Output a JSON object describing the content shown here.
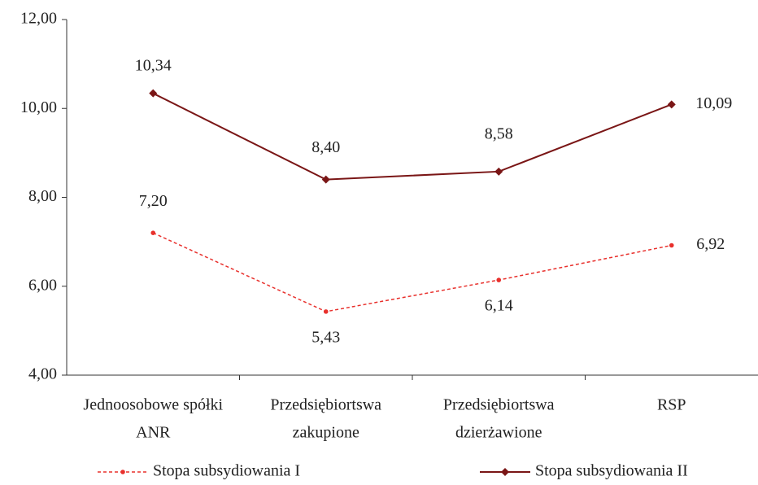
{
  "chart_data": {
    "type": "line",
    "categories": [
      [
        "Jednoosobowe spółki",
        "ANR"
      ],
      [
        "Przedsiębiortswa",
        "zakupione"
      ],
      [
        "Przedsiębiortswa",
        "dzierżawione"
      ],
      [
        "RSP"
      ]
    ],
    "series": [
      {
        "name": "Stopa subsydiowania I",
        "color": "#e8302c",
        "dashed": true,
        "marker": "circle",
        "values": [
          7.2,
          5.43,
          6.14,
          6.92
        ],
        "value_labels": [
          "7,20",
          "5,43",
          "6,14",
          "6,92"
        ]
      },
      {
        "name": "Stopa subsydiowania II",
        "color": "#7a1616",
        "dashed": false,
        "marker": "diamond",
        "values": [
          10.34,
          8.4,
          8.58,
          10.09
        ],
        "value_labels": [
          "10,34",
          "8,40",
          "8,58",
          "10,09"
        ]
      }
    ],
    "ylim": [
      4,
      12
    ],
    "yticks": [
      {
        "value": 4,
        "label": "4,00"
      },
      {
        "value": 6,
        "label": "6,00"
      },
      {
        "value": 8,
        "label": "8,00"
      },
      {
        "value": 10,
        "label": "10,00"
      },
      {
        "value": 12,
        "label": "12,00"
      }
    ],
    "grid": false,
    "legend": "bottom"
  }
}
